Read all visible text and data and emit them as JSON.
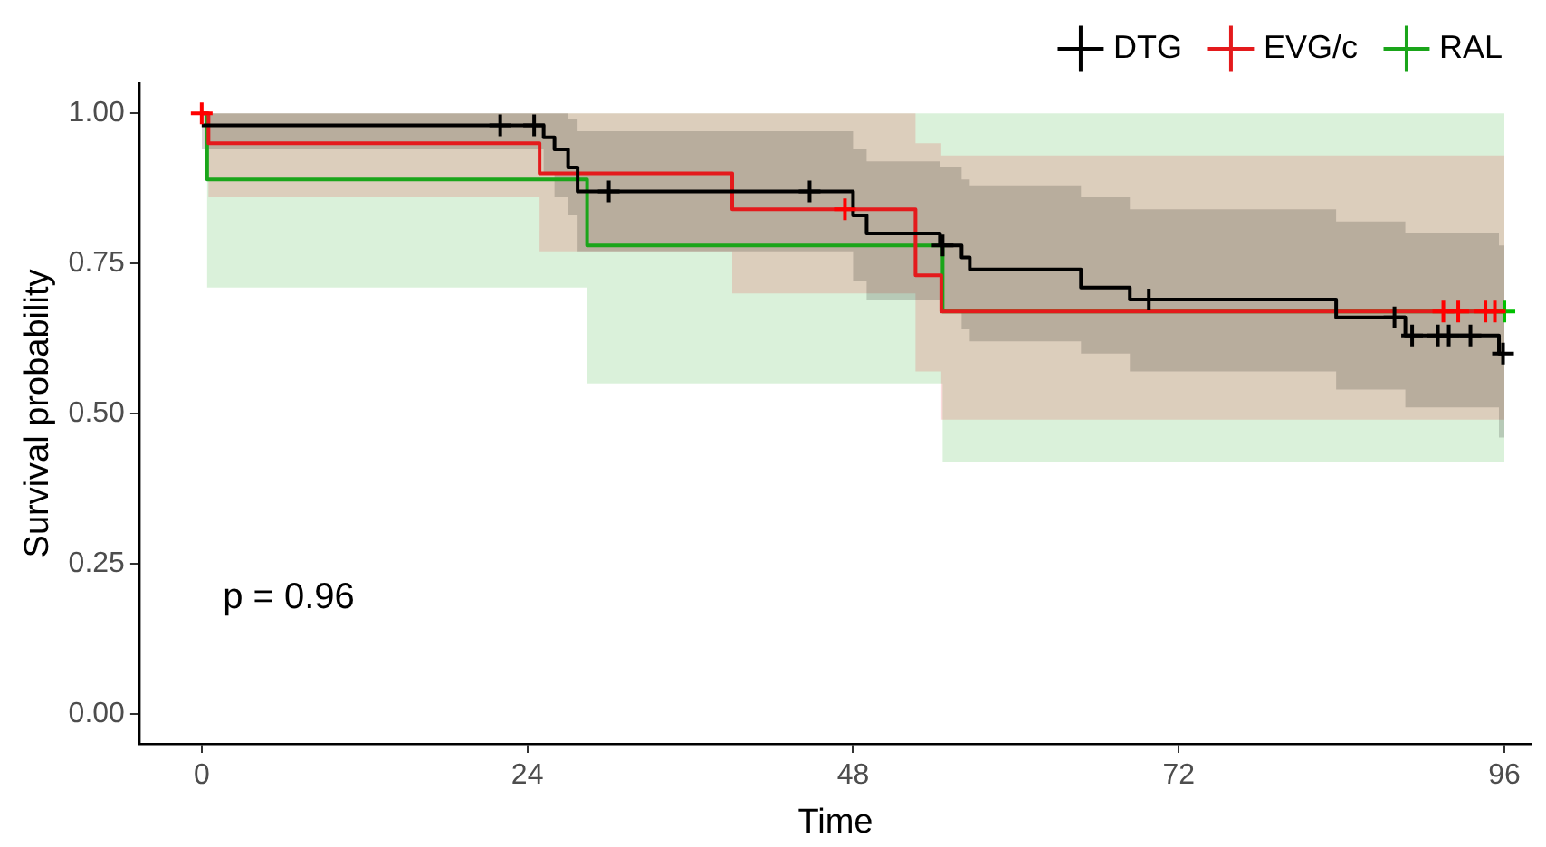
{
  "chart_data": {
    "type": "step",
    "xlabel": "Time",
    "ylabel": "Survival probability",
    "annotations": [
      "p = 0.96"
    ],
    "xlim": [
      -4.6,
      98
    ],
    "xticks": [
      0,
      24,
      48,
      72,
      96
    ],
    "ylim": [
      -0.05,
      1.05
    ],
    "yticks": [
      {
        "value": 0,
        "label": "0.00"
      },
      {
        "value": 0.25,
        "label": "0.25"
      },
      {
        "value": 0.5,
        "label": "0.50"
      },
      {
        "value": 0.75,
        "label": "0.75"
      },
      {
        "value": 1,
        "label": "1.00"
      }
    ],
    "grid": false,
    "legend": "top",
    "line_style": "solid",
    "series": [
      {
        "name": "DTG",
        "color": "#000000",
        "x": [
          0,
          25.2,
          26,
          27,
          27.7,
          48,
          49,
          54.4,
          56,
          56.6,
          64.8,
          68.4,
          83.6,
          88.7,
          95.6,
          96
        ],
        "values": [
          0.98,
          0.96,
          0.94,
          0.91,
          0.87,
          0.83,
          0.8,
          0.78,
          0.76,
          0.74,
          0.71,
          0.69,
          0.66,
          0.63,
          0.6,
          0.6
        ],
        "lower": [
          0.94,
          0.9,
          0.86,
          0.83,
          0.77,
          0.72,
          0.69,
          0.67,
          0.64,
          0.62,
          0.6,
          0.57,
          0.54,
          0.51,
          0.46,
          0.46
        ],
        "upper": [
          1,
          1,
          1,
          0.99,
          0.97,
          0.94,
          0.92,
          0.91,
          0.89,
          0.88,
          0.86,
          0.84,
          0.82,
          0.8,
          0.78,
          0.78
        ]
      },
      {
        "name": "EVG/c",
        "color": "#e41a1c",
        "x": [
          0,
          0.5,
          24.9,
          39.1,
          52.6,
          54.5,
          96
        ],
        "values": [
          1,
          0.95,
          0.9,
          0.84,
          0.73,
          0.67,
          0.67
        ],
        "lower": [
          1,
          0.86,
          0.77,
          0.7,
          0.57,
          0.49,
          0.49
        ],
        "upper": [
          1,
          1,
          1,
          1,
          0.95,
          0.93,
          0.93
        ]
      },
      {
        "name": "RAL",
        "color": "#1aa51a",
        "x": [
          0,
          0.4,
          28.4,
          54.6,
          96
        ],
        "values": [
          1,
          0.89,
          0.78,
          0.67,
          0.67
        ],
        "lower": [
          1,
          0.71,
          0.55,
          0.42,
          0.42
        ],
        "upper": [
          1,
          1,
          1,
          1,
          1
        ]
      },
      {
        "type": "scatter",
        "marker": "cross",
        "color": "#000000",
        "x": [
          22,
          24.5,
          30,
          44.8,
          54.6,
          69.8,
          87.9,
          89.2,
          91.1,
          91.9,
          93.5,
          95.9
        ],
        "values": [
          0.98,
          0.98,
          0.87,
          0.87,
          0.78,
          0.69,
          0.66,
          0.63,
          0.63,
          0.63,
          0.63,
          0.6
        ]
      },
      {
        "type": "scatter",
        "marker": "cross",
        "color": "#ff0000",
        "x": [
          0,
          47.4,
          91.5,
          92.6,
          94.6,
          95.3
        ],
        "values": [
          1,
          0.84,
          0.67,
          0.67,
          0.67,
          0.67
        ]
      },
      {
        "type": "scatter",
        "marker": "cross",
        "color": "#00c000",
        "x": [
          96
        ],
        "values": [
          0.67
        ]
      }
    ]
  }
}
